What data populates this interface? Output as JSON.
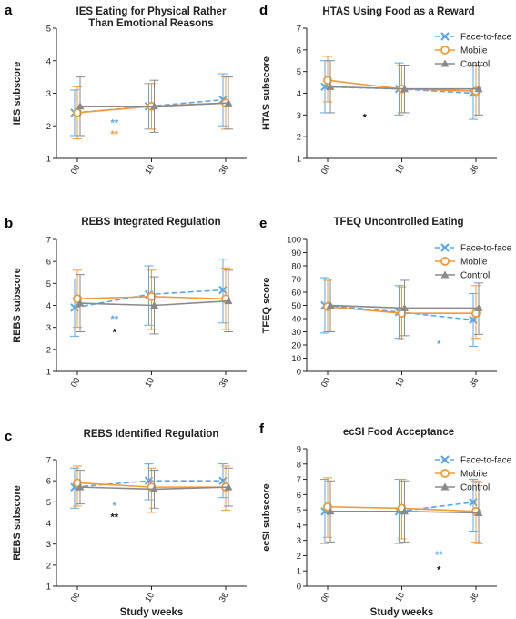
{
  "colors": {
    "face_to_face": "#5aa7e8",
    "mobile": "#f39a37",
    "control": "#8a8a8a",
    "black": "#111111"
  },
  "x_label": "Study weeks",
  "chart_data": [
    {
      "letter": "a",
      "type": "line",
      "title": "IES Eating for Physical Rather\nThan Emotional Reasons",
      "ylabel": "IES subscore",
      "xlabel": "",
      "categories": [
        "00",
        "10",
        "36"
      ],
      "ylim": [
        1,
        5
      ],
      "yticks": [
        1,
        2,
        3,
        4,
        5
      ],
      "series": [
        {
          "name": "Face-to-face",
          "values": [
            2.4,
            2.6,
            2.8
          ],
          "lower": [
            1.7,
            1.9,
            2.0
          ],
          "upper": [
            3.1,
            3.3,
            3.6
          ]
        },
        {
          "name": "Mobile",
          "values": [
            2.4,
            2.6,
            2.7
          ],
          "lower": [
            1.6,
            1.9,
            1.9
          ],
          "upper": [
            3.2,
            3.3,
            3.5
          ]
        },
        {
          "name": "Control",
          "values": [
            2.6,
            2.6,
            2.7
          ],
          "lower": [
            1.7,
            1.8,
            1.9
          ],
          "upper": [
            3.5,
            3.4,
            3.5
          ]
        }
      ],
      "legend": false,
      "annotations": [
        {
          "text": "**",
          "color": "face_to_face",
          "x": 0.5,
          "y": 2.1
        },
        {
          "text": "**",
          "color": "mobile",
          "x": 0.5,
          "y": 1.75
        }
      ]
    },
    {
      "letter": "d",
      "type": "line",
      "title": "HTAS Using Food as a Reward",
      "ylabel": "HTAS subscore",
      "xlabel": "",
      "categories": [
        "00",
        "10",
        "36"
      ],
      "ylim": [
        1,
        7
      ],
      "yticks": [
        1,
        2,
        3,
        4,
        5,
        6,
        7
      ],
      "series": [
        {
          "name": "Face-to-face",
          "values": [
            4.3,
            4.2,
            4.0
          ],
          "lower": [
            3.1,
            3.0,
            2.8
          ],
          "upper": [
            5.5,
            5.4,
            5.3
          ]
        },
        {
          "name": "Mobile",
          "values": [
            4.6,
            4.2,
            4.1
          ],
          "lower": [
            3.6,
            3.1,
            2.9
          ],
          "upper": [
            5.7,
            5.3,
            5.3
          ]
        },
        {
          "name": "Control",
          "values": [
            4.3,
            4.2,
            4.2
          ],
          "lower": [
            3.1,
            3.1,
            3.0
          ],
          "upper": [
            5.5,
            5.3,
            5.3
          ]
        }
      ],
      "legend": true,
      "legend_entries": [
        "Face-to-face",
        "Mobile",
        "Control"
      ],
      "annotations": [
        {
          "text": "*",
          "color": "black",
          "x": 0.5,
          "y": 2.9
        }
      ]
    },
    {
      "letter": "b",
      "type": "line",
      "title": "REBS Integrated Regulation",
      "ylabel": "REBS subscore",
      "xlabel": "",
      "categories": [
        "00",
        "10",
        "36"
      ],
      "ylim": [
        1,
        7
      ],
      "yticks": [
        1,
        2,
        3,
        4,
        5,
        6,
        7
      ],
      "series": [
        {
          "name": "Face-to-face",
          "values": [
            3.9,
            4.5,
            4.7
          ],
          "lower": [
            2.6,
            3.1,
            3.2
          ],
          "upper": [
            5.2,
            5.8,
            6.1
          ]
        },
        {
          "name": "Mobile",
          "values": [
            4.3,
            4.4,
            4.3
          ],
          "lower": [
            3.0,
            2.9,
            2.9
          ],
          "upper": [
            5.6,
            5.6,
            5.7
          ]
        },
        {
          "name": "Control",
          "values": [
            4.1,
            4.0,
            4.2
          ],
          "lower": [
            2.8,
            2.7,
            2.8
          ],
          "upper": [
            5.4,
            5.3,
            5.6
          ]
        }
      ],
      "legend": false,
      "annotations": [
        {
          "text": "**",
          "color": "face_to_face",
          "x": 0.5,
          "y": 3.4
        },
        {
          "text": "*",
          "color": "black",
          "x": 0.5,
          "y": 2.8
        }
      ]
    },
    {
      "letter": "e",
      "type": "line",
      "title": "TFEQ Uncontrolled Eating",
      "ylabel": "TFEQ score",
      "xlabel": "",
      "categories": [
        "00",
        "10",
        "36"
      ],
      "ylim": [
        0,
        100
      ],
      "yticks": [
        0,
        10,
        20,
        30,
        40,
        50,
        60,
        70,
        80,
        90,
        100
      ],
      "series": [
        {
          "name": "Face-to-face",
          "values": [
            50,
            45,
            39
          ],
          "lower": [
            29,
            25,
            19
          ],
          "upper": [
            71,
            65,
            59
          ]
        },
        {
          "name": "Mobile",
          "values": [
            49,
            44,
            44
          ],
          "lower": [
            30,
            24,
            25
          ],
          "upper": [
            69,
            64,
            65
          ]
        },
        {
          "name": "Control",
          "values": [
            50,
            48,
            48
          ],
          "lower": [
            30,
            27,
            28
          ],
          "upper": [
            70,
            69,
            67
          ]
        }
      ],
      "legend": true,
      "legend_entries": [
        "Face-to-face",
        "Mobile",
        "Control"
      ],
      "annotations": [
        {
          "text": "*",
          "color": "face_to_face",
          "x": 1.5,
          "y": 21
        }
      ]
    },
    {
      "letter": "c",
      "type": "line",
      "title": "REBS Identified Regulation",
      "ylabel": "REBS subscore",
      "xlabel": "Study weeks",
      "categories": [
        "00",
        "10",
        "36"
      ],
      "ylim": [
        1,
        7
      ],
      "yticks": [
        1,
        2,
        3,
        4,
        5,
        6,
        7
      ],
      "series": [
        {
          "name": "Face-to-face",
          "values": [
            5.7,
            6.0,
            6.0
          ],
          "lower": [
            4.7,
            5.1,
            5.2
          ],
          "upper": [
            6.6,
            6.8,
            6.8
          ]
        },
        {
          "name": "Mobile",
          "values": [
            5.9,
            5.7,
            5.7
          ],
          "lower": [
            4.8,
            4.5,
            4.6
          ],
          "upper": [
            6.7,
            6.6,
            6.7
          ]
        },
        {
          "name": "Control",
          "values": [
            5.7,
            5.6,
            5.7
          ],
          "lower": [
            4.9,
            4.7,
            4.8
          ],
          "upper": [
            6.5,
            6.5,
            6.6
          ]
        }
      ],
      "legend": false,
      "annotations": [
        {
          "text": "*",
          "color": "face_to_face",
          "x": 0.5,
          "y": 4.85
        },
        {
          "text": "**",
          "color": "black",
          "x": 0.5,
          "y": 4.3
        }
      ]
    },
    {
      "letter": "f",
      "type": "line",
      "title": "ecSI Food Acceptance",
      "ylabel": "ecSI subscore",
      "xlabel": "Study weeks",
      "categories": [
        "00",
        "10",
        "36"
      ],
      "ylim": [
        0,
        9
      ],
      "yticks": [
        0,
        1,
        2,
        3,
        4,
        5,
        6,
        7,
        8,
        9
      ],
      "series": [
        {
          "name": "Face-to-face",
          "values": [
            4.9,
            4.9,
            5.5
          ],
          "lower": [
            2.8,
            2.8,
            3.6
          ],
          "upper": [
            7.0,
            7.0,
            7.0
          ]
        },
        {
          "name": "Mobile",
          "values": [
            5.2,
            5.1,
            4.9
          ],
          "lower": [
            3.2,
            3.1,
            2.9
          ],
          "upper": [
            7.1,
            7.0,
            6.9
          ]
        },
        {
          "name": "Control",
          "values": [
            4.9,
            4.9,
            4.8
          ],
          "lower": [
            2.9,
            2.9,
            2.8
          ],
          "upper": [
            6.9,
            6.9,
            6.8
          ]
        }
      ],
      "legend": true,
      "legend_entries": [
        "Face-to-face",
        "Mobile",
        "Control"
      ],
      "annotations": [
        {
          "text": "**",
          "color": "face_to_face",
          "x": 1.5,
          "y": 2.1
        },
        {
          "text": "*",
          "color": "black",
          "x": 1.5,
          "y": 1.1
        }
      ]
    }
  ]
}
